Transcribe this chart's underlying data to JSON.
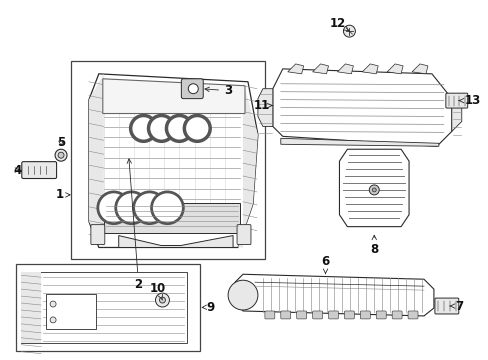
{
  "bg_color": "#ffffff",
  "lc": "#2a2a2a",
  "lc_light": "#888888",
  "fc_gray": "#e8e8e8",
  "fc_mid": "#cccccc",
  "fc_dark": "#aaaaaa",
  "fig_w": 4.89,
  "fig_h": 3.6,
  "dpi": 100
}
